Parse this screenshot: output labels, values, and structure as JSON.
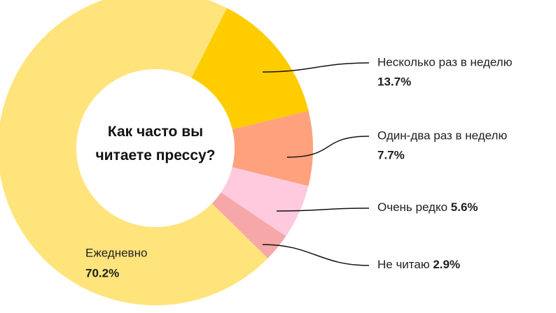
{
  "chart_data": {
    "type": "donut",
    "title": "Как часто вы читаете прессу?",
    "categories": [
      "Несколько раз в неделю",
      "Один-два раз в неделю",
      "Очень редко",
      "Не читаю",
      "Ежедневно"
    ],
    "values": [
      13.7,
      7.7,
      5.6,
      2.9,
      70.2
    ],
    "value_labels": [
      "13.7%",
      "7.7%",
      "5.6%",
      "2.9%",
      "70.2%"
    ],
    "colors": [
      "#ffcc00",
      "#ffa17c",
      "#ffcade",
      "#f6a8a8",
      "#ffe47c"
    ]
  }
}
